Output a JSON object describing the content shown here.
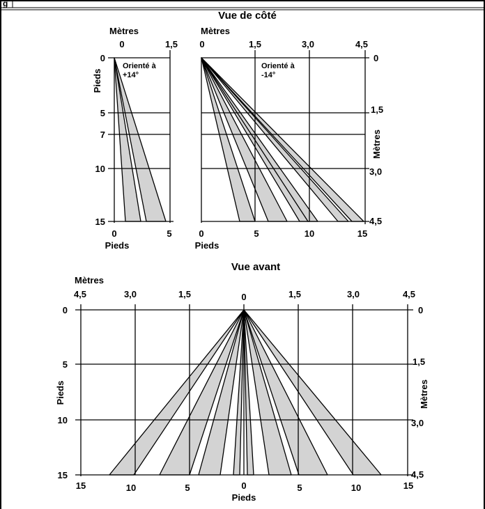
{
  "header": {
    "fragment": "g"
  },
  "side_view": {
    "title": "Vue de côté",
    "left_panel": {
      "top_unit": "Mètres",
      "top_ticks": [
        "0",
        "1,5"
      ],
      "left_unit": "Pieds",
      "left_ticks": [
        "0",
        "5",
        "7",
        "10",
        "15"
      ],
      "bottom_unit": "Pieds",
      "bottom_ticks": [
        "0",
        "5"
      ],
      "orientation_line1": "Orienté à",
      "orientation_line2": "+14°"
    },
    "right_panel": {
      "top_unit": "Mètres",
      "top_ticks": [
        "0",
        "1,5",
        "3,0",
        "4,5"
      ],
      "right_unit": "Mètres",
      "right_ticks": [
        "0",
        "1,5",
        "3,0",
        "4,5"
      ],
      "bottom_unit": "Pieds",
      "bottom_ticks": [
        "0",
        "5",
        "10",
        "15"
      ],
      "orientation_line1": "Orienté à",
      "orientation_line2": "-14°"
    }
  },
  "front_view": {
    "title": "Vue avant",
    "top_unit": "Mètres",
    "top_ticks": [
      "4,5",
      "3,0",
      "1,5",
      "0",
      "1,5",
      "3,0",
      "4,5"
    ],
    "left_unit": "Pieds",
    "left_ticks": [
      "0",
      "5",
      "10",
      "15"
    ],
    "right_unit": "Mètres",
    "right_ticks": [
      "0",
      "1,5",
      "3,0",
      "4,5"
    ],
    "bottom_unit": "Pieds",
    "bottom_ticks": [
      "15",
      "10",
      "5",
      "0",
      "5",
      "10",
      "15"
    ]
  },
  "beam_color": "#d3d3d3"
}
